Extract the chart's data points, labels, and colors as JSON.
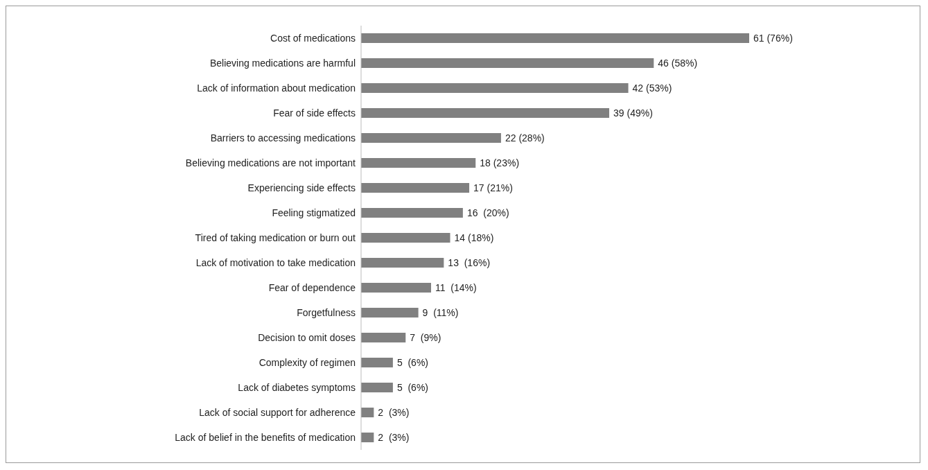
{
  "chart_data": {
    "type": "bar",
    "orientation": "horizontal",
    "color": "#808080",
    "categories": [
      "Cost of medications",
      "Believing medications are harmful",
      "Lack of information about medication",
      "Fear of side effects",
      "Barriers to accessing medications",
      "Believing medications are not important",
      "Experiencing side effects",
      "Feeling stigmatized",
      "Tired of taking medication or burn out",
      "Lack of motivation to take medication",
      "Fear of dependence",
      "Forgetfulness",
      "Decision to omit doses",
      "Complexity of regimen",
      "Lack of diabetes symptoms",
      "Lack of social support for adherence",
      "Lack of belief in the benefits of medication"
    ],
    "values": [
      61,
      46,
      42,
      39,
      22,
      18,
      17,
      16,
      14,
      13,
      11,
      9,
      7,
      5,
      5,
      2,
      2
    ],
    "value_labels": [
      "61 (76%)",
      "46 (58%)",
      "42 (53%)",
      "39 (49%)",
      "22 (28%)",
      "18 (23%)",
      "17 (21%)",
      "16  (20%)",
      "14 (18%)",
      "13  (16%)",
      "11  (14%)",
      "9  (11%)",
      "7  (9%)",
      "5  (6%)",
      "5  (6%)",
      "2  (3%)",
      "2  (3%)"
    ]
  }
}
